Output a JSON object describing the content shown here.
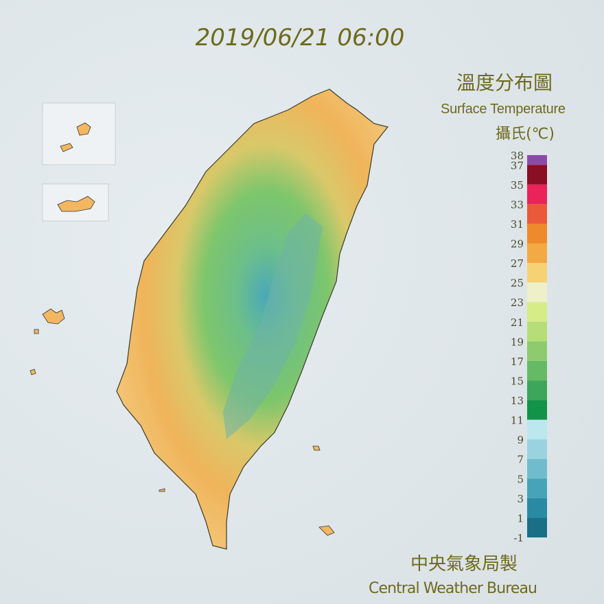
{
  "timestamp": "2019/06/21 06:00",
  "title": "溫度分布圖",
  "subtitle": "Surface Temperature",
  "unit": "攝氏(℃)",
  "legend": {
    "ticks": [
      38,
      37,
      35,
      33,
      31,
      29,
      27,
      25,
      23,
      21,
      19,
      17,
      15,
      13,
      11,
      9,
      7,
      5,
      3,
      1,
      -1
    ],
    "colors": [
      "#8c4aa8",
      "#8a0e24",
      "#e8245a",
      "#ea5a3a",
      "#ee8a2c",
      "#f3a944",
      "#f6d274",
      "#eef0c8",
      "#d6ec86",
      "#b5de78",
      "#8ecb6e",
      "#66ba66",
      "#3ea65a",
      "#13934a",
      "#bde7ee",
      "#9ad3df",
      "#6fbccd",
      "#46a3b8",
      "#2a8aa3",
      "#1a6f86"
    ]
  },
  "footer": {
    "chinese": "中央氣象局製",
    "english": "Central Weather Bureau"
  }
}
